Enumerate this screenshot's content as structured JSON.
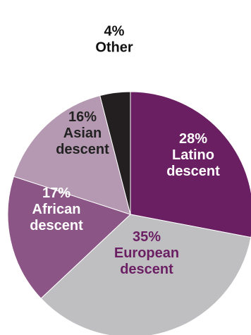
{
  "chart_data": {
    "type": "pie",
    "slices": [
      {
        "percent_label": "28%",
        "label_lines": [
          "Latino",
          "descent"
        ],
        "value": 28,
        "color": "#6b1f63",
        "text_color": "#ffffff"
      },
      {
        "percent_label": "35%",
        "label_lines": [
          "European",
          "descent"
        ],
        "value": 35,
        "color": "#bfbfc2",
        "text_color": "#6b1f63"
      },
      {
        "percent_label": "17%",
        "label_lines": [
          "African",
          "descent"
        ],
        "value": 17,
        "color": "#8b5585",
        "text_color": "#ffffff"
      },
      {
        "percent_label": "16%",
        "label_lines": [
          "Asian",
          "descent"
        ],
        "value": 16,
        "color": "#b598b1",
        "text_color": "#222222"
      },
      {
        "percent_label": "4%",
        "label_lines": [
          "Other"
        ],
        "value": 4,
        "color": "#231f20",
        "text_color": "#111111"
      }
    ],
    "start_angle_deg": 0,
    "direction": "clockwise",
    "legend": "none"
  }
}
